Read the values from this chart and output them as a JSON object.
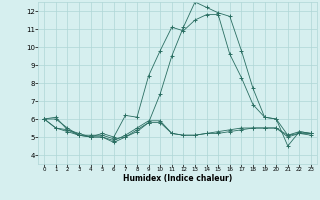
{
  "xlabel": "Humidex (Indice chaleur)",
  "bg_color": "#d6efef",
  "grid_color": "#afd6d6",
  "line_color": "#2a6e62",
  "xlim": [
    -0.5,
    23.5
  ],
  "ylim": [
    3.5,
    12.5
  ],
  "xticks": [
    0,
    1,
    2,
    3,
    4,
    5,
    6,
    7,
    8,
    9,
    10,
    11,
    12,
    13,
    14,
    15,
    16,
    17,
    18,
    19,
    20,
    21,
    22,
    23
  ],
  "yticks": [
    4,
    5,
    6,
    7,
    8,
    9,
    10,
    11,
    12
  ],
  "series": [
    [
      6.0,
      6.1,
      5.4,
      5.1,
      5.0,
      5.2,
      5.0,
      6.2,
      6.1,
      8.4,
      9.8,
      11.1,
      10.9,
      11.5,
      11.8,
      11.8,
      9.6,
      8.3,
      6.8,
      6.1,
      6.0,
      5.1,
      5.2,
      5.2
    ],
    [
      6.0,
      6.0,
      5.5,
      5.1,
      5.1,
      5.1,
      4.9,
      5.0,
      5.3,
      5.8,
      7.4,
      9.5,
      11.1,
      12.5,
      12.2,
      11.9,
      11.7,
      9.8,
      7.7,
      6.1,
      6.0,
      4.5,
      5.3,
      5.2
    ],
    [
      6.0,
      5.5,
      5.4,
      5.2,
      5.0,
      5.0,
      4.8,
      5.1,
      5.5,
      5.9,
      5.9,
      5.2,
      5.1,
      5.1,
      5.2,
      5.3,
      5.4,
      5.5,
      5.5,
      5.5,
      5.5,
      5.1,
      5.3,
      5.2
    ],
    [
      6.0,
      5.5,
      5.3,
      5.1,
      5.0,
      5.0,
      4.7,
      5.0,
      5.4,
      5.8,
      5.8,
      5.2,
      5.1,
      5.1,
      5.2,
      5.2,
      5.3,
      5.4,
      5.5,
      5.5,
      5.5,
      5.0,
      5.2,
      5.1
    ]
  ]
}
